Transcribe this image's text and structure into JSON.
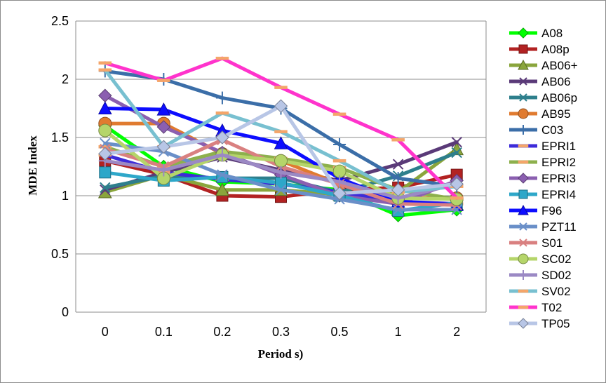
{
  "chart_data": {
    "type": "line",
    "title": "",
    "xlabel": "Period s)",
    "ylabel": "MDE Index",
    "categories": [
      "0",
      "0.1",
      "0.2",
      "0.3",
      "0.5",
      "1",
      "2"
    ],
    "ylim": [
      0,
      2.5
    ],
    "yticks": [
      "0",
      "0.5",
      "1",
      "1.5",
      "2",
      "2.5"
    ],
    "grid": "horizontal",
    "legend_position": "right",
    "series": [
      {
        "name": "A08",
        "color": "#00ff00",
        "marker": "diamond",
        "values": [
          1.6,
          1.25,
          1.12,
          1.1,
          1.05,
          0.83,
          0.88
        ]
      },
      {
        "name": "A08p",
        "color": "#b22222",
        "marker": "square",
        "values": [
          1.3,
          1.18,
          1.0,
          0.99,
          1.05,
          1.07,
          1.18
        ]
      },
      {
        "name": "AB06+",
        "color": "#8aa53c",
        "marker": "triangle",
        "values": [
          1.03,
          1.18,
          1.05,
          1.05,
          1.01,
          1.03,
          1.4
        ]
      },
      {
        "name": "AB06",
        "color": "#5a3a78",
        "marker": "x",
        "values": [
          1.05,
          1.2,
          1.33,
          1.22,
          1.13,
          1.27,
          1.46
        ]
      },
      {
        "name": "AB06p",
        "color": "#2e7f8c",
        "marker": "x",
        "values": [
          1.07,
          1.17,
          1.15,
          1.15,
          1.03,
          1.17,
          1.37
        ]
      },
      {
        "name": "AB95",
        "color": "#e07b30",
        "marker": "circle",
        "values": [
          1.62,
          1.62,
          1.36,
          1.3,
          1.1,
          0.98,
          0.98
        ]
      },
      {
        "name": "C03",
        "color": "#3b6ea8",
        "marker": "plus",
        "values": [
          2.07,
          2.0,
          1.84,
          1.75,
          1.44,
          1.15,
          1.08
        ]
      },
      {
        "name": "EPRI1",
        "color": "#3d2bd9",
        "marker": "dash",
        "values": [
          1.35,
          1.2,
          1.14,
          1.1,
          1.03,
          0.95,
          0.93
        ]
      },
      {
        "name": "EPRI2",
        "color": "#8db04d",
        "marker": "dash",
        "values": [
          1.42,
          1.25,
          1.38,
          1.32,
          1.24,
          1.05,
          0.97
        ]
      },
      {
        "name": "EPRI3",
        "color": "#8b5fb0",
        "marker": "diamond",
        "values": [
          1.86,
          1.59,
          1.37,
          1.18,
          1.0,
          0.93,
          1.13
        ]
      },
      {
        "name": "EPRI4",
        "color": "#2ea7c9",
        "marker": "square",
        "values": [
          1.2,
          1.13,
          1.16,
          1.11,
          1.0,
          0.87,
          0.94
        ]
      },
      {
        "name": "F96",
        "color": "#0d0dff",
        "marker": "triangle",
        "values": [
          1.75,
          1.74,
          1.56,
          1.45,
          1.15,
          0.95,
          0.92
        ]
      },
      {
        "name": "PZT11",
        "color": "#6a8fc8",
        "marker": "x",
        "values": [
          1.45,
          1.38,
          1.18,
          1.05,
          0.97,
          0.88,
          0.88
        ]
      },
      {
        "name": "S01",
        "color": "#d98080",
        "marker": "x",
        "values": [
          1.4,
          1.25,
          1.48,
          1.25,
          1.1,
          0.93,
          0.92
        ]
      },
      {
        "name": "SC02",
        "color": "#b5d56a",
        "marker": "circle",
        "values": [
          1.56,
          1.15,
          1.35,
          1.3,
          1.21,
          0.98,
          0.97
        ]
      },
      {
        "name": "SD02",
        "color": "#9b89c4",
        "marker": "plus",
        "values": [
          1.3,
          1.22,
          1.35,
          1.2,
          1.12,
          0.98,
          1.1
        ]
      },
      {
        "name": "SV02",
        "color": "#78c0d0",
        "marker": "dash",
        "values": [
          2.08,
          1.42,
          1.71,
          1.55,
          1.3,
          1.03,
          1.08
        ]
      },
      {
        "name": "T02",
        "color": "#ff33cc",
        "marker": "dash",
        "values": [
          2.14,
          1.99,
          2.18,
          1.93,
          1.7,
          1.48,
          0.98
        ]
      },
      {
        "name": "TP05",
        "color": "#b8c6e6",
        "marker": "diamond",
        "values": [
          1.36,
          1.42,
          1.5,
          1.77,
          1.02,
          1.05,
          1.1
        ]
      }
    ]
  }
}
